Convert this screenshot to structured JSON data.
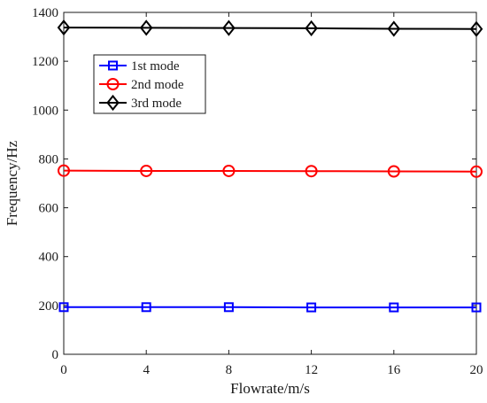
{
  "chart_data": {
    "type": "line",
    "xlabel": "Flowrate/m/s",
    "ylabel": "Frequency/Hz",
    "xlim": [
      0,
      20
    ],
    "ylim": [
      0,
      1400
    ],
    "xticks": [
      "0",
      "4",
      "8",
      "12",
      "16",
      "20"
    ],
    "yticks": [
      "0",
      "200",
      "400",
      "600",
      "800",
      "1000",
      "1200",
      "1400"
    ],
    "x": [
      0,
      4,
      8,
      12,
      16,
      20
    ],
    "series": [
      {
        "name": "1st mode",
        "values": [
          193,
          193,
          193,
          192,
          192,
          192
        ],
        "color": "#0000ff",
        "marker": "square"
      },
      {
        "name": "2nd mode",
        "values": [
          752,
          751,
          751,
          750,
          749,
          748
        ],
        "color": "#ff0000",
        "marker": "circle"
      },
      {
        "name": "3rd mode",
        "values": [
          1338,
          1337,
          1336,
          1335,
          1333,
          1332
        ],
        "color": "#000000",
        "marker": "diamond"
      }
    ],
    "legend_position": "upper-left",
    "grid": false
  }
}
